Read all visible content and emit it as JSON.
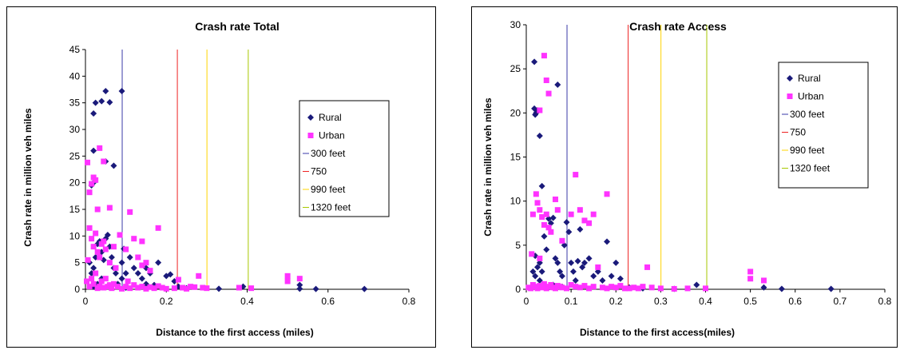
{
  "colors": {
    "rural": "#1a1a7a",
    "urban": "#ff33ff",
    "ref_300": "#3a3aa8",
    "ref_750": "#ee2222",
    "ref_990": "#ffd400",
    "ref_1320": "#a8c800"
  },
  "chart_data": [
    {
      "type": "scatter",
      "title": "Crash rate Total",
      "xlabel": "Distance to the first access (miles)",
      "ylabel": "Crash rate in million veh miles",
      "xlim": [
        0,
        0.8
      ],
      "ylim": [
        0,
        45
      ],
      "xticks": [
        "0",
        "0.2",
        "0.4",
        "0.6",
        "0.8"
      ],
      "yticks": [
        "0",
        "5",
        "10",
        "15",
        "20",
        "25",
        "30",
        "35",
        "40",
        "45"
      ],
      "grid": false,
      "legend_position": "right",
      "series": [
        {
          "name": "Rural",
          "marker": "diamond",
          "points": [
            [
              0.02,
              33
            ],
            [
              0.025,
              35
            ],
            [
              0.04,
              35.3
            ],
            [
              0.05,
              37.2
            ],
            [
              0.06,
              35.1
            ],
            [
              0.09,
              37.2
            ],
            [
              0.015,
              19.5
            ],
            [
              0.02,
              20
            ],
            [
              0.02,
              26
            ],
            [
              0.07,
              23.2
            ],
            [
              0.05,
              24
            ],
            [
              0.01,
              5
            ],
            [
              0.015,
              3
            ],
            [
              0.02,
              4
            ],
            [
              0.025,
              6
            ],
            [
              0.03,
              8.5
            ],
            [
              0.035,
              9
            ],
            [
              0.04,
              7
            ],
            [
              0.045,
              5.5
            ],
            [
              0.05,
              9.5
            ],
            [
              0.055,
              10.2
            ],
            [
              0.06,
              8
            ],
            [
              0.065,
              6
            ],
            [
              0.07,
              4
            ],
            [
              0.075,
              3
            ],
            [
              0.08,
              1
            ],
            [
              0.09,
              5
            ],
            [
              0.09,
              2
            ],
            [
              0.095,
              7.6
            ],
            [
              0.1,
              3
            ],
            [
              0.11,
              6
            ],
            [
              0.12,
              4
            ],
            [
              0.13,
              3
            ],
            [
              0.14,
              2
            ],
            [
              0.15,
              4
            ],
            [
              0.16,
              3
            ],
            [
              0.18,
              5
            ],
            [
              0.2,
              2.5
            ],
            [
              0.21,
              2.8
            ],
            [
              0.22,
              1.5
            ],
            [
              0.23,
              0.5
            ],
            [
              0.02,
              0.5
            ],
            [
              0.03,
              1
            ],
            [
              0.04,
              2
            ],
            [
              0.06,
              0.5
            ],
            [
              0.1,
              0.3
            ],
            [
              0.15,
              1
            ],
            [
              0.17,
              0.8
            ],
            [
              0.25,
              0.2
            ],
            [
              0.33,
              0.1
            ],
            [
              0.39,
              0.5
            ],
            [
              0.53,
              0.8
            ],
            [
              0.53,
              0.1
            ],
            [
              0.57,
              0.05
            ],
            [
              0.69,
              0.05
            ]
          ]
        },
        {
          "name": "Urban",
          "marker": "square",
          "points": [
            [
              0.005,
              23.8
            ],
            [
              0.01,
              18.2
            ],
            [
              0.015,
              19.8
            ],
            [
              0.02,
              21
            ],
            [
              0.025,
              20.5
            ],
            [
              0.03,
              15
            ],
            [
              0.035,
              26.5
            ],
            [
              0.045,
              24
            ],
            [
              0.06,
              15.3
            ],
            [
              0.11,
              14.5
            ],
            [
              0.01,
              11.5
            ],
            [
              0.015,
              9.5
            ],
            [
              0.02,
              8
            ],
            [
              0.025,
              10.5
            ],
            [
              0.03,
              7
            ],
            [
              0.035,
              6
            ],
            [
              0.04,
              8.5
            ],
            [
              0.045,
              9
            ],
            [
              0.05,
              7.5
            ],
            [
              0.06,
              5
            ],
            [
              0.07,
              8
            ],
            [
              0.075,
              4
            ],
            [
              0.085,
              10.2
            ],
            [
              0.1,
              7.5
            ],
            [
              0.12,
              9.5
            ],
            [
              0.13,
              6
            ],
            [
              0.14,
              9
            ],
            [
              0.15,
              5
            ],
            [
              0.16,
              3.5
            ],
            [
              0.18,
              11.5
            ],
            [
              0.14,
              4.5
            ],
            [
              0.003,
              1.5
            ],
            [
              0.006,
              5.5
            ],
            [
              0.01,
              0.5
            ],
            [
              0.015,
              2
            ],
            [
              0.02,
              1
            ],
            [
              0.025,
              3
            ],
            [
              0.03,
              0.2
            ],
            [
              0.035,
              0.5
            ],
            [
              0.04,
              1.5
            ],
            [
              0.045,
              0.3
            ],
            [
              0.05,
              2
            ],
            [
              0.055,
              0.5
            ],
            [
              0.06,
              0.8
            ],
            [
              0.065,
              0.2
            ],
            [
              0.07,
              1
            ],
            [
              0.08,
              0.5
            ],
            [
              0.09,
              0.1
            ],
            [
              0.1,
              0.5
            ],
            [
              0.105,
              1.5
            ],
            [
              0.11,
              0.2
            ],
            [
              0.12,
              0.8
            ],
            [
              0.13,
              0.3
            ],
            [
              0.14,
              0.5
            ],
            [
              0.15,
              0.1
            ],
            [
              0.16,
              0.4
            ],
            [
              0.17,
              0.2
            ],
            [
              0.18,
              0.6
            ],
            [
              0.19,
              0.3
            ],
            [
              0.2,
              0.1
            ],
            [
              0.22,
              0.2
            ],
            [
              0.23,
              1.8
            ],
            [
              0.24,
              0.3
            ],
            [
              0.25,
              0.1
            ],
            [
              0.26,
              0.5
            ],
            [
              0.27,
              0.4
            ],
            [
              0.28,
              2.5
            ],
            [
              0.29,
              0.3
            ],
            [
              0.3,
              0.2
            ],
            [
              0.38,
              0.3
            ],
            [
              0.41,
              0.2
            ],
            [
              0.5,
              2.5
            ],
            [
              0.5,
              1.5
            ],
            [
              0.53,
              2
            ]
          ]
        },
        {
          "name": "300 feet",
          "type": "vline",
          "x": 0.0909
        },
        {
          "name": "750",
          "type": "vline",
          "x": 0.2273
        },
        {
          "name": "990 feet",
          "type": "vline",
          "x": 0.3005
        },
        {
          "name": "1320 feet",
          "type": "vline",
          "x": 0.4027
        }
      ]
    },
    {
      "type": "scatter",
      "title": "Crash rate Access",
      "xlabel": "Distance to the first access(miles)",
      "ylabel": "Crash rate in million veh miles",
      "xlim": [
        0,
        0.8
      ],
      "ylim": [
        0,
        30
      ],
      "xticks": [
        "0",
        "0.1",
        "0.2",
        "0.3",
        "0.4",
        "0.5",
        "0.6",
        "0.7",
        "0.8"
      ],
      "yticks": [
        "0",
        "5",
        "10",
        "15",
        "20",
        "25",
        "30"
      ],
      "grid": false,
      "legend_position": "top-right",
      "series": [
        {
          "name": "Rural",
          "marker": "diamond",
          "points": [
            [
              0.018,
              25.8
            ],
            [
              0.018,
              20.5
            ],
            [
              0.02,
              19.8
            ],
            [
              0.022,
              20
            ],
            [
              0.025,
              20.3
            ],
            [
              0.03,
              17.4
            ],
            [
              0.035,
              11.7
            ],
            [
              0.07,
              23.2
            ],
            [
              0.02,
              3.8
            ],
            [
              0.025,
              2.5
            ],
            [
              0.03,
              3
            ],
            [
              0.035,
              2
            ],
            [
              0.04,
              6
            ],
            [
              0.045,
              4.5
            ],
            [
              0.05,
              8
            ],
            [
              0.055,
              7.5
            ],
            [
              0.06,
              8.1
            ],
            [
              0.065,
              3.5
            ],
            [
              0.07,
              3
            ],
            [
              0.075,
              2
            ],
            [
              0.08,
              1.5
            ],
            [
              0.085,
              5
            ],
            [
              0.09,
              7.6
            ],
            [
              0.095,
              6.5
            ],
            [
              0.1,
              3
            ],
            [
              0.105,
              2
            ],
            [
              0.11,
              1
            ],
            [
              0.115,
              3.2
            ],
            [
              0.12,
              6.8
            ],
            [
              0.125,
              2.5
            ],
            [
              0.13,
              3
            ],
            [
              0.14,
              3.5
            ],
            [
              0.15,
              1.5
            ],
            [
              0.16,
              2
            ],
            [
              0.17,
              1
            ],
            [
              0.18,
              5.4
            ],
            [
              0.19,
              1.5
            ],
            [
              0.2,
              3
            ],
            [
              0.21,
              1.2
            ],
            [
              0.015,
              2
            ],
            [
              0.02,
              1.5
            ],
            [
              0.03,
              1
            ],
            [
              0.04,
              0.5
            ],
            [
              0.05,
              0.2
            ],
            [
              0.06,
              0.5
            ],
            [
              0.08,
              0.3
            ],
            [
              0.23,
              0.2
            ],
            [
              0.26,
              0.1
            ],
            [
              0.33,
              0.05
            ],
            [
              0.38,
              0.5
            ],
            [
              0.53,
              0.2
            ],
            [
              0.57,
              0.05
            ],
            [
              0.68,
              0.05
            ]
          ]
        },
        {
          "name": "Urban",
          "marker": "square",
          "points": [
            [
              0.04,
              26.5
            ],
            [
              0.045,
              23.7
            ],
            [
              0.05,
              22.2
            ],
            [
              0.03,
              20.3
            ],
            [
              0.022,
              10.8
            ],
            [
              0.025,
              9.8
            ],
            [
              0.03,
              9
            ],
            [
              0.035,
              8.2
            ],
            [
              0.04,
              7.3
            ],
            [
              0.045,
              8.5
            ],
            [
              0.05,
              7
            ],
            [
              0.055,
              6.5
            ],
            [
              0.065,
              10.2
            ],
            [
              0.07,
              9
            ],
            [
              0.08,
              5.5
            ],
            [
              0.1,
              8.5
            ],
            [
              0.11,
              13
            ],
            [
              0.12,
              9
            ],
            [
              0.13,
              7.8
            ],
            [
              0.14,
              7.5
            ],
            [
              0.15,
              8.5
            ],
            [
              0.18,
              10.8
            ],
            [
              0.012,
              4
            ],
            [
              0.015,
              8.5
            ],
            [
              0.03,
              3.5
            ],
            [
              0.005,
              0.2
            ],
            [
              0.01,
              0.1
            ],
            [
              0.015,
              0.5
            ],
            [
              0.02,
              0.3
            ],
            [
              0.025,
              0.1
            ],
            [
              0.03,
              0.4
            ],
            [
              0.035,
              0.2
            ],
            [
              0.04,
              0.6
            ],
            [
              0.045,
              0.1
            ],
            [
              0.05,
              0.3
            ],
            [
              0.055,
              0.5
            ],
            [
              0.06,
              0.2
            ],
            [
              0.065,
              0.1
            ],
            [
              0.07,
              0.4
            ],
            [
              0.075,
              0.3
            ],
            [
              0.08,
              0.2
            ],
            [
              0.09,
              0.1
            ],
            [
              0.1,
              0.5
            ],
            [
              0.11,
              0.3
            ],
            [
              0.12,
              0.2
            ],
            [
              0.13,
              0.4
            ],
            [
              0.14,
              0.1
            ],
            [
              0.15,
              0.3
            ],
            [
              0.16,
              2.5
            ],
            [
              0.17,
              0.2
            ],
            [
              0.18,
              0.1
            ],
            [
              0.19,
              0.3
            ],
            [
              0.2,
              0.2
            ],
            [
              0.21,
              0.4
            ],
            [
              0.22,
              0.1
            ],
            [
              0.23,
              0.1
            ],
            [
              0.24,
              0.2
            ],
            [
              0.25,
              0.1
            ],
            [
              0.26,
              0.3
            ],
            [
              0.27,
              2.5
            ],
            [
              0.28,
              0.2
            ],
            [
              0.3,
              0.1
            ],
            [
              0.33,
              0.05
            ],
            [
              0.36,
              0.1
            ],
            [
              0.4,
              0.1
            ],
            [
              0.5,
              2
            ],
            [
              0.5,
              1.2
            ],
            [
              0.53,
              1
            ]
          ]
        },
        {
          "name": "300 feet",
          "type": "vline",
          "x": 0.0909
        },
        {
          "name": "750",
          "type": "vline",
          "x": 0.2273
        },
        {
          "name": "990 feet",
          "type": "vline",
          "x": 0.3005
        },
        {
          "name": "1320 feet",
          "type": "vline",
          "x": 0.4027
        }
      ]
    }
  ]
}
